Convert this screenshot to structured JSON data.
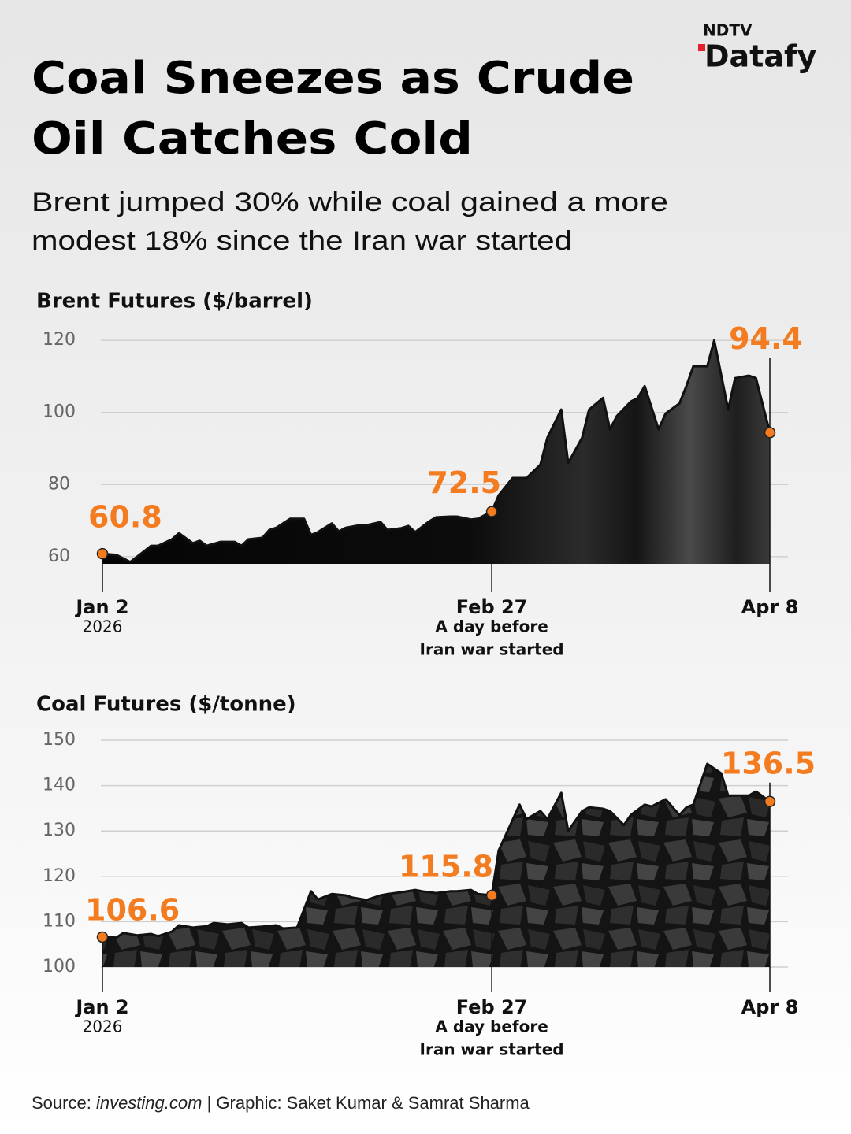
{
  "header": {
    "logo_top": "NDTV",
    "logo": "Datafy",
    "title": [
      "Coal Sneezes as Crude",
      "Oil Catches Cold"
    ],
    "subtitle": [
      "Brent jumped 30% while coal gained a more",
      "modest 18% since the Iran war started"
    ]
  },
  "chart_data": [
    {
      "type": "area",
      "title": "Brent Futures ($/barrel)",
      "x": [
        "2026-01-02",
        "2026-01-04",
        "2026-01-06",
        "2026-01-08",
        "2026-01-09",
        "2026-01-10",
        "2026-01-12",
        "2026-01-13",
        "2026-01-15",
        "2026-01-16",
        "2026-01-17",
        "2026-01-19",
        "2026-01-21",
        "2026-01-22",
        "2026-01-23",
        "2026-01-25",
        "2026-01-26",
        "2026-01-27",
        "2026-01-29",
        "2026-01-31",
        "2026-02-01",
        "2026-02-02",
        "2026-02-04",
        "2026-02-05",
        "2026-02-06",
        "2026-02-08",
        "2026-02-09",
        "2026-02-11",
        "2026-02-12",
        "2026-02-14",
        "2026-02-15",
        "2026-02-16",
        "2026-02-18",
        "2026-02-19",
        "2026-02-21",
        "2026-02-22",
        "2026-02-24",
        "2026-02-25",
        "2026-02-27",
        "2026-02-28",
        "2026-03-02",
        "2026-03-04",
        "2026-03-06",
        "2026-03-07",
        "2026-03-09",
        "2026-03-10",
        "2026-03-12",
        "2026-03-13",
        "2026-03-15",
        "2026-03-16",
        "2026-03-17",
        "2026-03-19",
        "2026-03-20",
        "2026-03-21",
        "2026-03-23",
        "2026-03-24",
        "2026-03-26",
        "2026-03-27",
        "2026-03-28",
        "2026-03-30",
        "2026-03-31",
        "2026-04-02",
        "2026-04-03",
        "2026-04-05",
        "2026-04-06",
        "2026-04-08"
      ],
      "values": [
        60.8,
        60.5,
        58.5,
        61.5,
        63,
        63,
        64.8,
        66.5,
        63.7,
        64.4,
        63,
        64.1,
        64.1,
        63,
        64.8,
        65.2,
        67.4,
        68,
        70.5,
        70.5,
        66,
        66.8,
        69.2,
        67,
        68,
        68.7,
        68.7,
        69.6,
        67.4,
        67.9,
        68.5,
        66.8,
        69.8,
        70.9,
        71.1,
        71.1,
        70.3,
        70.5,
        72.5,
        77,
        81.8,
        81.8,
        85.5,
        93,
        100.8,
        86,
        93,
        100.8,
        104,
        95.3,
        99,
        103,
        104,
        107.3,
        95.3,
        99.7,
        102.5,
        107.3,
        112.8,
        112.8,
        120,
        100.8,
        109.5,
        110.2,
        109.5,
        94.4
      ],
      "color": "#111111",
      "marker_color": "#f47c20",
      "xlim": [
        "2026-01-02",
        "2026-04-08"
      ],
      "xticks": [
        {
          "value": "2026-01-02",
          "label": "Jan 2"
        },
        {
          "value": "2026-02-27",
          "label": "Feb 27"
        },
        {
          "value": "2026-04-08",
          "label": "Apr 8"
        }
      ],
      "x_annotations": [
        {
          "x": "2026-01-02",
          "text": [
            "2026"
          ]
        },
        {
          "x": "2026-02-27",
          "text": [
            "A day before",
            "Iran war started"
          ]
        }
      ],
      "ylim": [
        58,
        122
      ],
      "yticks": [
        60,
        80,
        100,
        120
      ],
      "grid": true
    },
    {
      "type": "area",
      "title": "Coal Futures ($/tonne)",
      "x": [
        "2026-01-02",
        "2026-01-04",
        "2026-01-05",
        "2026-01-07",
        "2026-01-09",
        "2026-01-10",
        "2026-01-12",
        "2026-01-13",
        "2026-01-15",
        "2026-01-17",
        "2026-01-18",
        "2026-01-20",
        "2026-01-22",
        "2026-01-23",
        "2026-01-25",
        "2026-01-27",
        "2026-01-28",
        "2026-01-30",
        "2026-02-01",
        "2026-02-02",
        "2026-02-04",
        "2026-02-06",
        "2026-02-07",
        "2026-02-09",
        "2026-02-11",
        "2026-02-12",
        "2026-02-14",
        "2026-02-16",
        "2026-02-17",
        "2026-02-19",
        "2026-02-21",
        "2026-02-22",
        "2026-02-24",
        "2026-02-25",
        "2026-02-27",
        "2026-02-28",
        "2026-03-03",
        "2026-03-04",
        "2026-03-06",
        "2026-03-07",
        "2026-03-09",
        "2026-03-10",
        "2026-03-12",
        "2026-03-13",
        "2026-03-15",
        "2026-03-16",
        "2026-03-18",
        "2026-03-19",
        "2026-03-21",
        "2026-03-22",
        "2026-03-24",
        "2026-03-26",
        "2026-03-27",
        "2026-03-28",
        "2026-03-30",
        "2026-04-01",
        "2026-04-02",
        "2026-04-03",
        "2026-04-05",
        "2026-04-06",
        "2026-04-08"
      ],
      "values": [
        106.6,
        106.5,
        107.5,
        107,
        107.3,
        106.8,
        107.8,
        109.2,
        108.7,
        109,
        109.7,
        109.4,
        109.7,
        108.7,
        108.9,
        109.2,
        108.5,
        108.7,
        116.7,
        114.9,
        116.1,
        115.8,
        115.3,
        114.8,
        115.8,
        116.1,
        116.5,
        117,
        116.7,
        116.3,
        116.7,
        116.7,
        117,
        116.1,
        115.8,
        125.7,
        135.8,
        132.6,
        134.4,
        132.6,
        138.4,
        130,
        134.4,
        135.2,
        134.9,
        134.4,
        131.3,
        133.5,
        135.8,
        135.4,
        137,
        133.5,
        135.2,
        135.8,
        144.8,
        142.7,
        137.8,
        137.8,
        137.8,
        138.7,
        136.5
      ],
      "color": "#111111",
      "marker_color": "#f47c20",
      "xlim": [
        "2026-01-02",
        "2026-04-08"
      ],
      "xticks": [
        {
          "value": "2026-01-02",
          "label": "Jan 2"
        },
        {
          "value": "2026-02-27",
          "label": "Feb 27"
        },
        {
          "value": "2026-04-08",
          "label": "Apr 8"
        }
      ],
      "x_annotations": [
        {
          "x": "2026-01-02",
          "text": [
            "2026"
          ]
        },
        {
          "x": "2026-02-27",
          "text": [
            "A day before",
            "Iran war started"
          ]
        }
      ],
      "ylim": [
        100,
        150
      ],
      "yticks": [
        100,
        110,
        120,
        130,
        140,
        150
      ],
      "grid": true
    }
  ],
  "source": {
    "label": "Source:",
    "site": "investing.com",
    "credit": "| Graphic: Saket Kumar & Samrat Sharma"
  }
}
